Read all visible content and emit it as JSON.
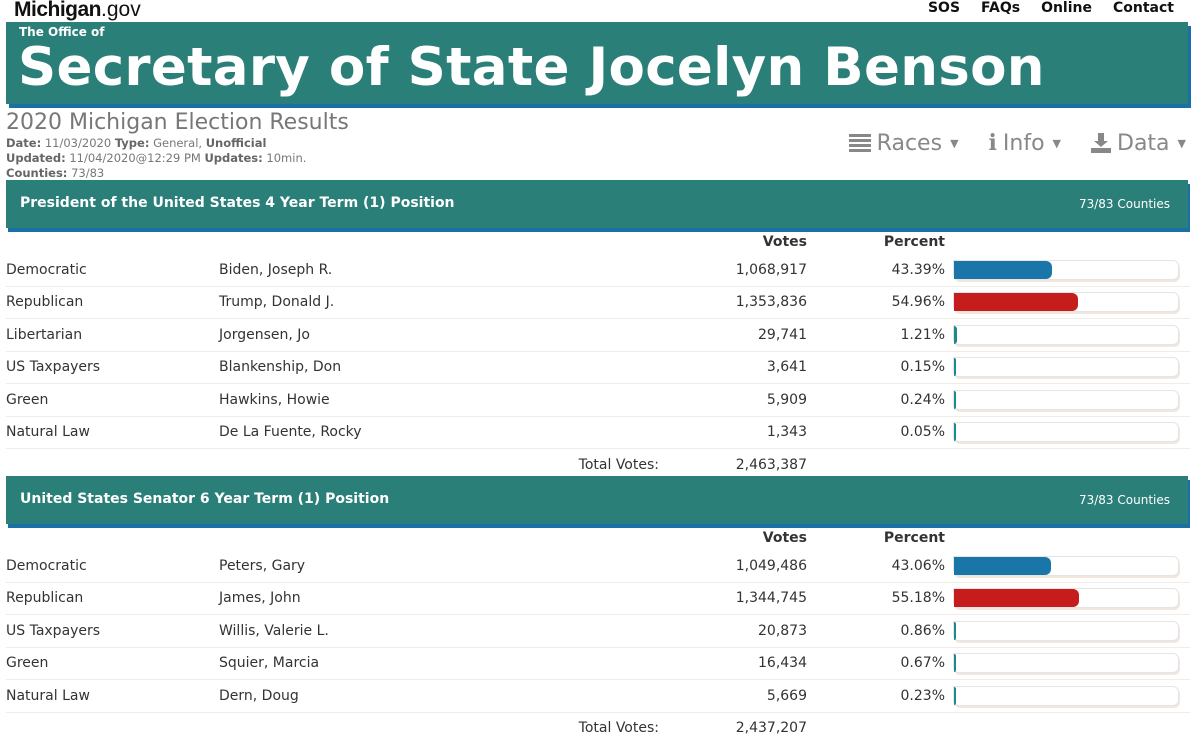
{
  "site": {
    "logo_bold": "Michigan",
    "logo_light": ".gov"
  },
  "nav": {
    "items": [
      "SOS",
      "FAQs",
      "Online",
      "Contact"
    ]
  },
  "banner": {
    "small": "The Office of",
    "title": "Secretary of State Jocelyn Benson"
  },
  "info": {
    "title": "2020 Michigan Election Results",
    "date_label": "Date:",
    "date": "11/03/2020",
    "type_label": "Type:",
    "type": "General,",
    "type_status": "Unofficial",
    "updated_label": "Updated:",
    "updated": "11/04/2020@12:29 PM",
    "updates_label": "Updates:",
    "updates": "10min.",
    "counties_label": "Counties:",
    "counties": "73/83"
  },
  "menus": {
    "races": "Races",
    "info": "Info",
    "data": "Data"
  },
  "colors": {
    "democratic": "#1a76a8",
    "republican": "#c61c1c",
    "other": "#1b8a8f",
    "header": "#2a7f79"
  },
  "table_headers": {
    "votes": "Votes",
    "percent": "Percent"
  },
  "races": [
    {
      "name": "President of the United States 4 Year Term (1) Position",
      "counties": "73/83 Counties",
      "total_label": "Total Votes:",
      "total": "2,463,387",
      "rows": [
        {
          "party": "Democratic",
          "candidate": "Biden, Joseph R.",
          "votes": "1,068,917",
          "percent": "43.39%",
          "pct_value": 43.39,
          "color": "#1a76a8"
        },
        {
          "party": "Republican",
          "candidate": "Trump, Donald J.",
          "votes": "1,353,836",
          "percent": "54.96%",
          "pct_value": 54.96,
          "color": "#c61c1c"
        },
        {
          "party": "Libertarian",
          "candidate": "Jorgensen, Jo",
          "votes": "29,741",
          "percent": "1.21%",
          "pct_value": 1.21,
          "color": "#1b8a8f"
        },
        {
          "party": "US Taxpayers",
          "candidate": "Blankenship, Don",
          "votes": "3,641",
          "percent": "0.15%",
          "pct_value": 0.15,
          "color": "#1b8a8f"
        },
        {
          "party": "Green",
          "candidate": "Hawkins, Howie",
          "votes": "5,909",
          "percent": "0.24%",
          "pct_value": 0.24,
          "color": "#1b8a8f"
        },
        {
          "party": "Natural Law",
          "candidate": "De La Fuente, Rocky",
          "votes": "1,343",
          "percent": "0.05%",
          "pct_value": 0.05,
          "color": "#1b8a8f"
        }
      ]
    },
    {
      "name": "United States Senator 6 Year Term (1) Position",
      "counties": "73/83 Counties",
      "total_label": "Total Votes:",
      "total": "2,437,207",
      "rows": [
        {
          "party": "Democratic",
          "candidate": "Peters, Gary",
          "votes": "1,049,486",
          "percent": "43.06%",
          "pct_value": 43.06,
          "color": "#1a76a8"
        },
        {
          "party": "Republican",
          "candidate": "James, John",
          "votes": "1,344,745",
          "percent": "55.18%",
          "pct_value": 55.18,
          "color": "#c61c1c"
        },
        {
          "party": "US Taxpayers",
          "candidate": "Willis, Valerie L.",
          "votes": "20,873",
          "percent": "0.86%",
          "pct_value": 0.86,
          "color": "#1b8a8f"
        },
        {
          "party": "Green",
          "candidate": "Squier, Marcia",
          "votes": "16,434",
          "percent": "0.67%",
          "pct_value": 0.67,
          "color": "#1b8a8f"
        },
        {
          "party": "Natural Law",
          "candidate": "Dern, Doug",
          "votes": "5,669",
          "percent": "0.23%",
          "pct_value": 0.23,
          "color": "#1b8a8f"
        }
      ]
    }
  ]
}
